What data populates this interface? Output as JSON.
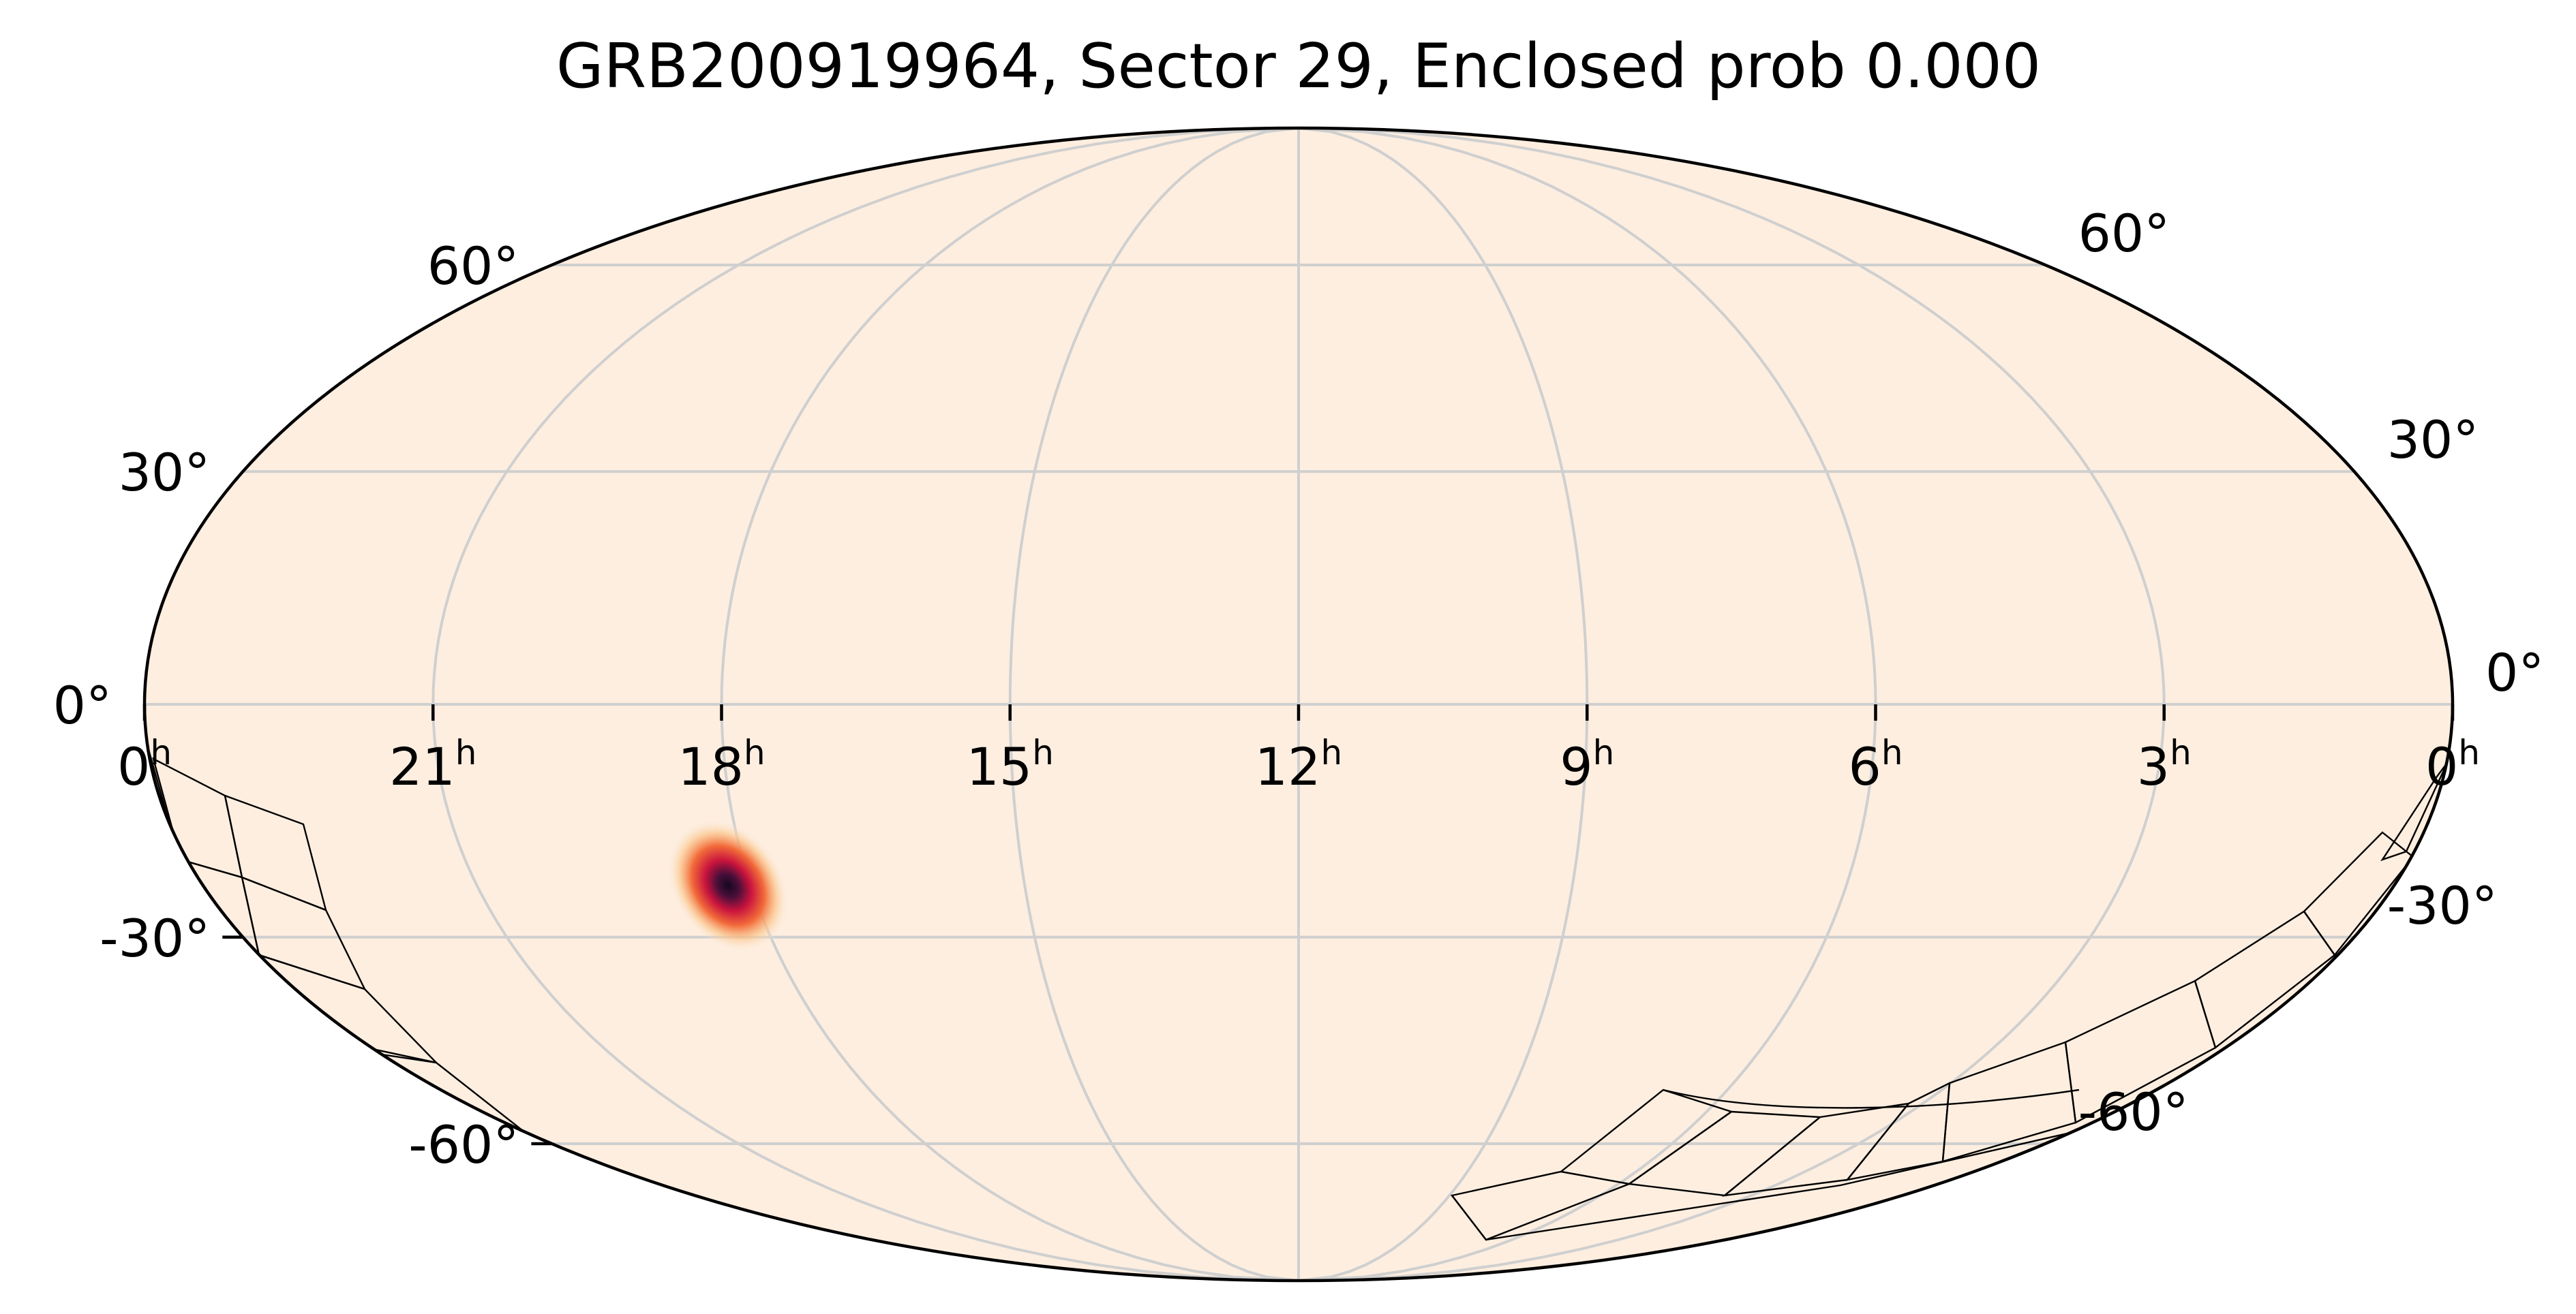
{
  "chart_data": {
    "type": "sky-map",
    "projection": "mollweide",
    "title": "GRB200919964, Sector 29, Enclosed prob 0.000",
    "ra_ticks": [
      {
        "hours": "0",
        "sup": "h",
        "ra_deg": 360
      },
      {
        "hours": "21",
        "sup": "h",
        "ra_deg": 315
      },
      {
        "hours": "18",
        "sup": "h",
        "ra_deg": 270
      },
      {
        "hours": "15",
        "sup": "h",
        "ra_deg": 225
      },
      {
        "hours": "12",
        "sup": "h",
        "ra_deg": 180
      },
      {
        "hours": "9",
        "sup": "h",
        "ra_deg": 135
      },
      {
        "hours": "6",
        "sup": "h",
        "ra_deg": 90
      },
      {
        "hours": "3",
        "sup": "h",
        "ra_deg": 45
      },
      {
        "hours": "0",
        "sup": "h",
        "ra_deg": 0
      }
    ],
    "dec_ticks_left": [
      {
        "label": "60°",
        "dec": 60
      },
      {
        "label": "30°",
        "dec": 30
      },
      {
        "label": "0°",
        "dec": 0
      },
      {
        "label": "-30°",
        "dec": -30
      },
      {
        "label": "-60°",
        "dec": -60
      }
    ],
    "dec_ticks_right": [
      {
        "label": "60°",
        "dec": 60
      },
      {
        "label": "30°",
        "dec": 30
      },
      {
        "label": "0°",
        "dec": 0
      },
      {
        "label": "-30°",
        "dec": -30
      },
      {
        "label": "-60°",
        "dec": -60
      }
    ],
    "grid": true,
    "ra_direction": "increasing-left",
    "colors": {
      "background": "#fdeee0",
      "grid": "#cfcfcf",
      "outline": "#000000",
      "footprint": "#000000",
      "hotspot_core": "#1c0c2e",
      "hotspot_mid": "#c9143d",
      "hotspot_outer": "#f7a35c"
    },
    "probability_peak": {
      "ra_deg": 268,
      "dec_deg": -22
    }
  }
}
